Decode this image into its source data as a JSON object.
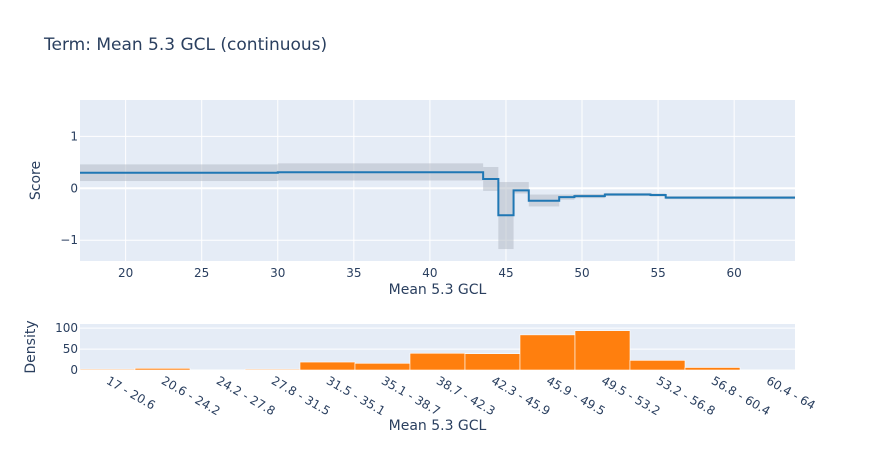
{
  "chart_data": [
    {
      "type": "line",
      "title": "Term: Mean 5.3 GCL (continuous)",
      "xlabel": "Mean 5.3 GCL",
      "ylabel": "Score",
      "xlim": [
        17,
        64
      ],
      "ylim": [
        -1.4,
        1.7
      ],
      "x_ticks": [
        20,
        25,
        30,
        35,
        40,
        45,
        50,
        55,
        60
      ],
      "y_ticks": [
        1,
        0,
        -1
      ],
      "y_tick_labels": [
        "1",
        "0",
        "−1"
      ],
      "grid": true,
      "colors": {
        "line": "#1f77b4",
        "band": "#b4bcc6",
        "plot_bg": "#e5ecf6",
        "grid": "#ffffff"
      },
      "step_segments": [
        {
          "x0": 17.0,
          "x1": 30.0,
          "y": 0.3,
          "lower": 0.14,
          "upper": 0.46
        },
        {
          "x0": 30.0,
          "x1": 43.5,
          "y": 0.31,
          "lower": 0.15,
          "upper": 0.48
        },
        {
          "x0": 43.5,
          "x1": 44.5,
          "y": 0.18,
          "lower": -0.05,
          "upper": 0.41
        },
        {
          "x0": 44.5,
          "x1": 45.5,
          "y": -0.52,
          "lower": -1.17,
          "upper": 0.12
        },
        {
          "x0": 45.5,
          "x1": 46.5,
          "y": -0.04,
          "lower": -0.1,
          "upper": 0.12
        },
        {
          "x0": 46.5,
          "x1": 48.5,
          "y": -0.24,
          "lower": -0.35,
          "upper": -0.12
        },
        {
          "x0": 48.5,
          "x1": 49.5,
          "y": -0.17,
          "lower": -0.22,
          "upper": -0.12
        },
        {
          "x0": 49.5,
          "x1": 51.5,
          "y": -0.15,
          "lower": -0.19,
          "upper": -0.11
        },
        {
          "x0": 51.5,
          "x1": 54.5,
          "y": -0.12,
          "lower": -0.15,
          "upper": -0.09
        },
        {
          "x0": 54.5,
          "x1": 55.5,
          "y": -0.13,
          "lower": -0.16,
          "upper": -0.1
        },
        {
          "x0": 55.5,
          "x1": 64.0,
          "y": -0.18,
          "lower": -0.21,
          "upper": -0.15
        }
      ]
    },
    {
      "type": "bar",
      "xlabel": "Mean 5.3 GCL",
      "ylabel": "Density",
      "ylim": [
        0,
        110
      ],
      "y_ticks": [
        0,
        50,
        100
      ],
      "categories": [
        "17 - 20.6",
        "20.6 - 24.2",
        "24.2 - 27.8",
        "27.8 - 31.5",
        "31.5 - 35.1",
        "35.1 - 38.7",
        "38.7 - 42.3",
        "42.3 - 45.9",
        "45.9 - 49.5",
        "49.5 - 53.2",
        "53.2 - 56.8",
        "56.8 - 60.4",
        "60.4 - 64"
      ],
      "values": [
        2,
        4,
        0,
        2,
        19,
        16,
        40,
        39,
        84,
        94,
        23,
        6,
        0
      ],
      "colors": {
        "bar": "#ff7f0e",
        "plot_bg": "#e5ecf6"
      }
    }
  ]
}
